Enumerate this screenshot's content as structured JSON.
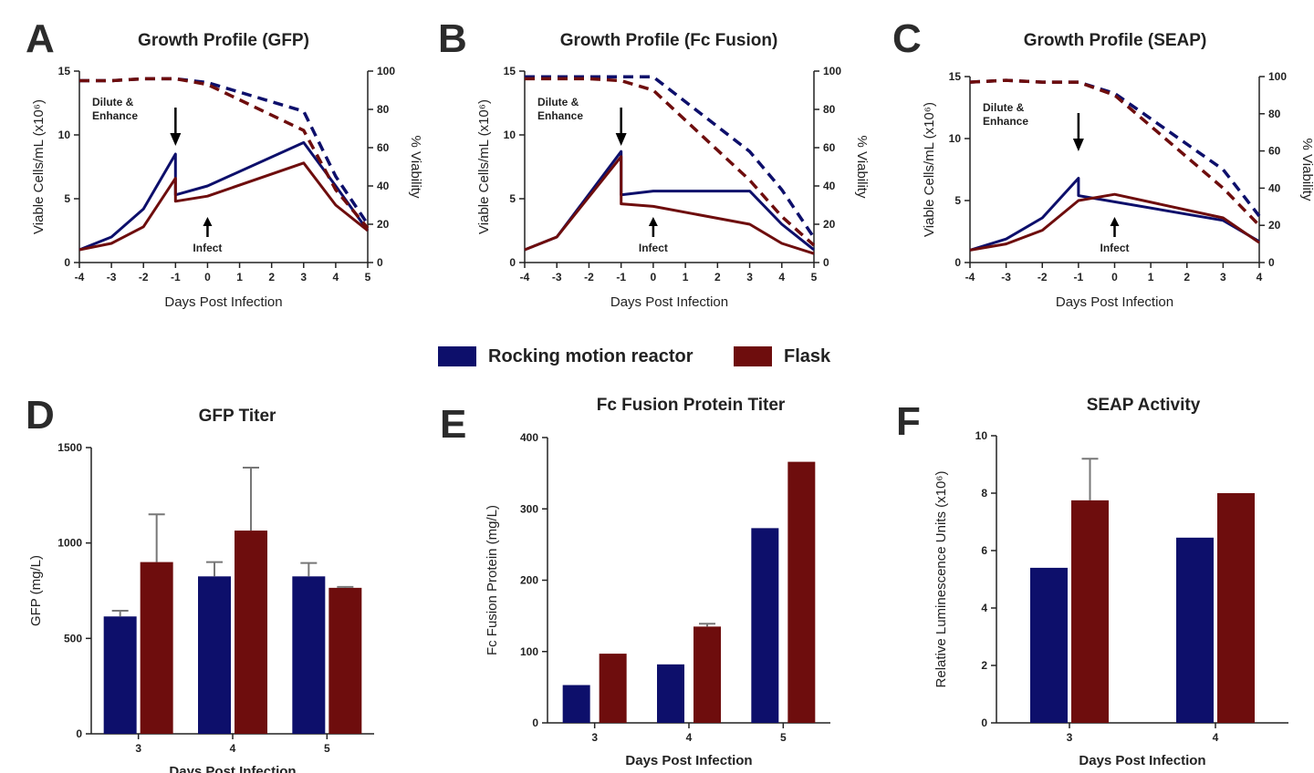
{
  "colors": {
    "rocking": "#0d0f6b",
    "flask": "#6e0d0d",
    "axis": "#222222"
  },
  "legend": {
    "items": [
      {
        "label": "Rocking motion reactor",
        "color": "#0d0f6b"
      },
      {
        "label": "Flask",
        "color": "#6e0d0d"
      }
    ]
  },
  "chart_data": [
    {
      "panel": "A",
      "type": "line",
      "title": "Growth Profile (GFP)",
      "xlabel": "Days Post Infection",
      "ylabel": "Viable Cells/mL (x10⁶)",
      "y2label": "% Viability",
      "xlim": [
        -4,
        5
      ],
      "ylim": [
        0,
        15
      ],
      "y2lim": [
        0,
        100
      ],
      "xticks": [
        -4,
        -3,
        -2,
        -1,
        0,
        1,
        2,
        3,
        4,
        5
      ],
      "yticks": [
        0,
        5,
        10,
        15
      ],
      "y2ticks": [
        0,
        20,
        40,
        60,
        80,
        100
      ],
      "series": [
        {
          "name": "Rocking motion reactor",
          "axis": "left",
          "style": "solid",
          "points": [
            [
              -4,
              1.0
            ],
            [
              -3,
              2.0
            ],
            [
              -2,
              4.2
            ],
            [
              -1,
              8.5
            ],
            [
              -1,
              5.3
            ],
            [
              0,
              6.0
            ],
            [
              3,
              9.4
            ],
            [
              4,
              6.0
            ],
            [
              5,
              2.5
            ]
          ]
        },
        {
          "name": "Flask",
          "axis": "left",
          "style": "solid",
          "points": [
            [
              -4,
              1.0
            ],
            [
              -3,
              1.5
            ],
            [
              -2,
              2.8
            ],
            [
              -1,
              6.6
            ],
            [
              -1,
              4.8
            ],
            [
              0,
              5.2
            ],
            [
              3,
              7.8
            ],
            [
              4,
              4.5
            ],
            [
              5,
              2.5
            ]
          ]
        },
        {
          "name": "Rocking motion reactor viability",
          "axis": "right",
          "style": "dashed",
          "points": [
            [
              -4,
              95
            ],
            [
              -3,
              95
            ],
            [
              -2,
              96
            ],
            [
              -1,
              96
            ],
            [
              0,
              94
            ],
            [
              3,
              79
            ],
            [
              4,
              45
            ],
            [
              5,
              20
            ]
          ]
        },
        {
          "name": "Flask viability",
          "axis": "right",
          "style": "dashed",
          "points": [
            [
              -4,
              95
            ],
            [
              -3,
              95
            ],
            [
              -2,
              96
            ],
            [
              -1,
              96
            ],
            [
              0,
              93
            ],
            [
              3,
              69
            ],
            [
              4,
              38
            ],
            [
              5,
              18
            ]
          ]
        }
      ],
      "annotations": [
        {
          "text_lines": [
            "Dilute &",
            "Enhance"
          ],
          "x": -1,
          "arrow": "down"
        },
        {
          "text_lines": [
            "Infect"
          ],
          "x": 0,
          "arrow": "up"
        }
      ]
    },
    {
      "panel": "B",
      "type": "line",
      "title": "Growth Profile (Fc Fusion)",
      "xlabel": "Days Post Infection",
      "ylabel": "Viable Cells/mL (x10⁶)",
      "y2label": "% Viability",
      "xlim": [
        -4,
        5
      ],
      "ylim": [
        0,
        15
      ],
      "y2lim": [
        0,
        100
      ],
      "xticks": [
        -4,
        -3,
        -2,
        -1,
        0,
        1,
        2,
        3,
        4,
        5
      ],
      "yticks": [
        0,
        5,
        10,
        15
      ],
      "y2ticks": [
        0,
        20,
        40,
        60,
        80,
        100
      ],
      "series": [
        {
          "name": "Rocking motion reactor",
          "axis": "left",
          "style": "solid",
          "points": [
            [
              -4,
              1.0
            ],
            [
              -3,
              2.0
            ],
            [
              -1,
              8.7
            ],
            [
              -1,
              5.3
            ],
            [
              0,
              5.6
            ],
            [
              3,
              5.6
            ],
            [
              4,
              3.0
            ],
            [
              5,
              1.0
            ]
          ]
        },
        {
          "name": "Flask",
          "axis": "left",
          "style": "solid",
          "points": [
            [
              -4,
              1.0
            ],
            [
              -3,
              2.0
            ],
            [
              -1,
              8.3
            ],
            [
              -1,
              4.6
            ],
            [
              0,
              4.4
            ],
            [
              3,
              3.0
            ],
            [
              4,
              1.5
            ],
            [
              5,
              0.7
            ]
          ]
        },
        {
          "name": "Rocking motion reactor viability",
          "axis": "right",
          "style": "dashed",
          "points": [
            [
              -4,
              97
            ],
            [
              -3,
              97
            ],
            [
              -2,
              97
            ],
            [
              -1,
              97
            ],
            [
              0,
              97
            ],
            [
              3,
              58
            ],
            [
              4,
              38
            ],
            [
              5,
              13
            ]
          ]
        },
        {
          "name": "Flask viability",
          "axis": "right",
          "style": "dashed",
          "points": [
            [
              -4,
              96
            ],
            [
              -3,
              96
            ],
            [
              -2,
              96
            ],
            [
              -1,
              95
            ],
            [
              0,
              90
            ],
            [
              3,
              43
            ],
            [
              4,
              24
            ],
            [
              5,
              9
            ]
          ]
        }
      ],
      "annotations": [
        {
          "text_lines": [
            "Dilute &",
            "Enhance"
          ],
          "x": -1,
          "arrow": "down"
        },
        {
          "text_lines": [
            "Infect"
          ],
          "x": 0,
          "arrow": "up"
        }
      ]
    },
    {
      "panel": "C",
      "type": "line",
      "title": "Growth Profile (SEAP)",
      "xlabel": "Days Post Infection",
      "ylabel": "Viable Cells/mL (x10⁶)",
      "y2label": "% Viability",
      "xlim": [
        -4,
        4
      ],
      "ylim": [
        0,
        15
      ],
      "y2lim": [
        0,
        100
      ],
      "xticks": [
        -4,
        -3,
        -2,
        -1,
        0,
        1,
        2,
        3,
        4
      ],
      "yticks": [
        0,
        5,
        10,
        15
      ],
      "y2ticks": [
        0,
        20,
        40,
        60,
        80,
        100
      ],
      "series": [
        {
          "name": "Rocking motion reactor",
          "axis": "left",
          "style": "solid",
          "points": [
            [
              -4,
              1.0
            ],
            [
              -3,
              1.9
            ],
            [
              -2,
              3.6
            ],
            [
              -1,
              6.8
            ],
            [
              -1,
              5.4
            ],
            [
              3,
              3.4
            ],
            [
              4,
              1.7
            ]
          ]
        },
        {
          "name": "Flask",
          "axis": "left",
          "style": "solid",
          "points": [
            [
              -4,
              1.0
            ],
            [
              -3,
              1.5
            ],
            [
              -2,
              2.6
            ],
            [
              -1,
              5.0
            ],
            [
              0,
              5.5
            ],
            [
              3,
              3.6
            ],
            [
              4,
              1.6
            ]
          ]
        },
        {
          "name": "Rocking motion reactor viability",
          "axis": "right",
          "style": "dashed",
          "points": [
            [
              -4,
              97
            ],
            [
              -3,
              98
            ],
            [
              -2,
              97
            ],
            [
              -1,
              97
            ],
            [
              0,
              91
            ],
            [
              3,
              50
            ],
            [
              4,
              25
            ]
          ]
        },
        {
          "name": "Flask viability",
          "axis": "right",
          "style": "dashed",
          "points": [
            [
              -4,
              97
            ],
            [
              -3,
              98
            ],
            [
              -2,
              97
            ],
            [
              -1,
              97
            ],
            [
              0,
              90
            ],
            [
              3,
              40
            ],
            [
              4,
              20
            ]
          ]
        }
      ],
      "annotations": [
        {
          "text_lines": [
            "Dilute &",
            "Enhance"
          ],
          "x": -1,
          "arrow": "down"
        },
        {
          "text_lines": [
            "Infect"
          ],
          "x": 0,
          "arrow": "up"
        }
      ]
    },
    {
      "panel": "D",
      "type": "bar",
      "title": "GFP Titer",
      "xlabel": "Days Post Infection",
      "ylabel": "GFP (mg/L)",
      "categories": [
        "3",
        "4",
        "5"
      ],
      "ylim": [
        0,
        1500
      ],
      "yticks": [
        0,
        500,
        1000,
        1500
      ],
      "series": [
        {
          "name": "Rocking motion reactor",
          "values": [
            615,
            825,
            825
          ],
          "errors": [
            30,
            75,
            70
          ]
        },
        {
          "name": "Flask",
          "values": [
            900,
            1065,
            765
          ],
          "errors": [
            250,
            330,
            5
          ]
        }
      ]
    },
    {
      "panel": "E",
      "type": "bar",
      "title": "Fc Fusion Protein Titer",
      "xlabel": "Days Post Infection",
      "ylabel": "Fc Fusion Protein (mg/L)",
      "categories": [
        "3",
        "4",
        "5"
      ],
      "ylim": [
        0,
        400
      ],
      "yticks": [
        0,
        100,
        200,
        300,
        400
      ],
      "series": [
        {
          "name": "Rocking motion reactor",
          "values": [
            53,
            82,
            273
          ],
          "errors": [
            0,
            0,
            0
          ]
        },
        {
          "name": "Flask",
          "values": [
            97,
            135,
            366
          ],
          "errors": [
            0,
            4,
            0
          ]
        }
      ]
    },
    {
      "panel": "F",
      "type": "bar",
      "title": "SEAP Activity",
      "xlabel": "Days Post Infection",
      "ylabel": "Relative Luminescence Units (x10⁶)",
      "categories": [
        "3",
        "4"
      ],
      "ylim": [
        0,
        10
      ],
      "yticks": [
        0,
        2,
        4,
        6,
        8,
        10
      ],
      "series": [
        {
          "name": "Rocking motion reactor",
          "values": [
            5.4,
            6.45
          ],
          "errors": [
            0,
            0
          ]
        },
        {
          "name": "Flask",
          "values": [
            7.75,
            8.0
          ],
          "errors": [
            1.45,
            0
          ]
        }
      ]
    }
  ]
}
